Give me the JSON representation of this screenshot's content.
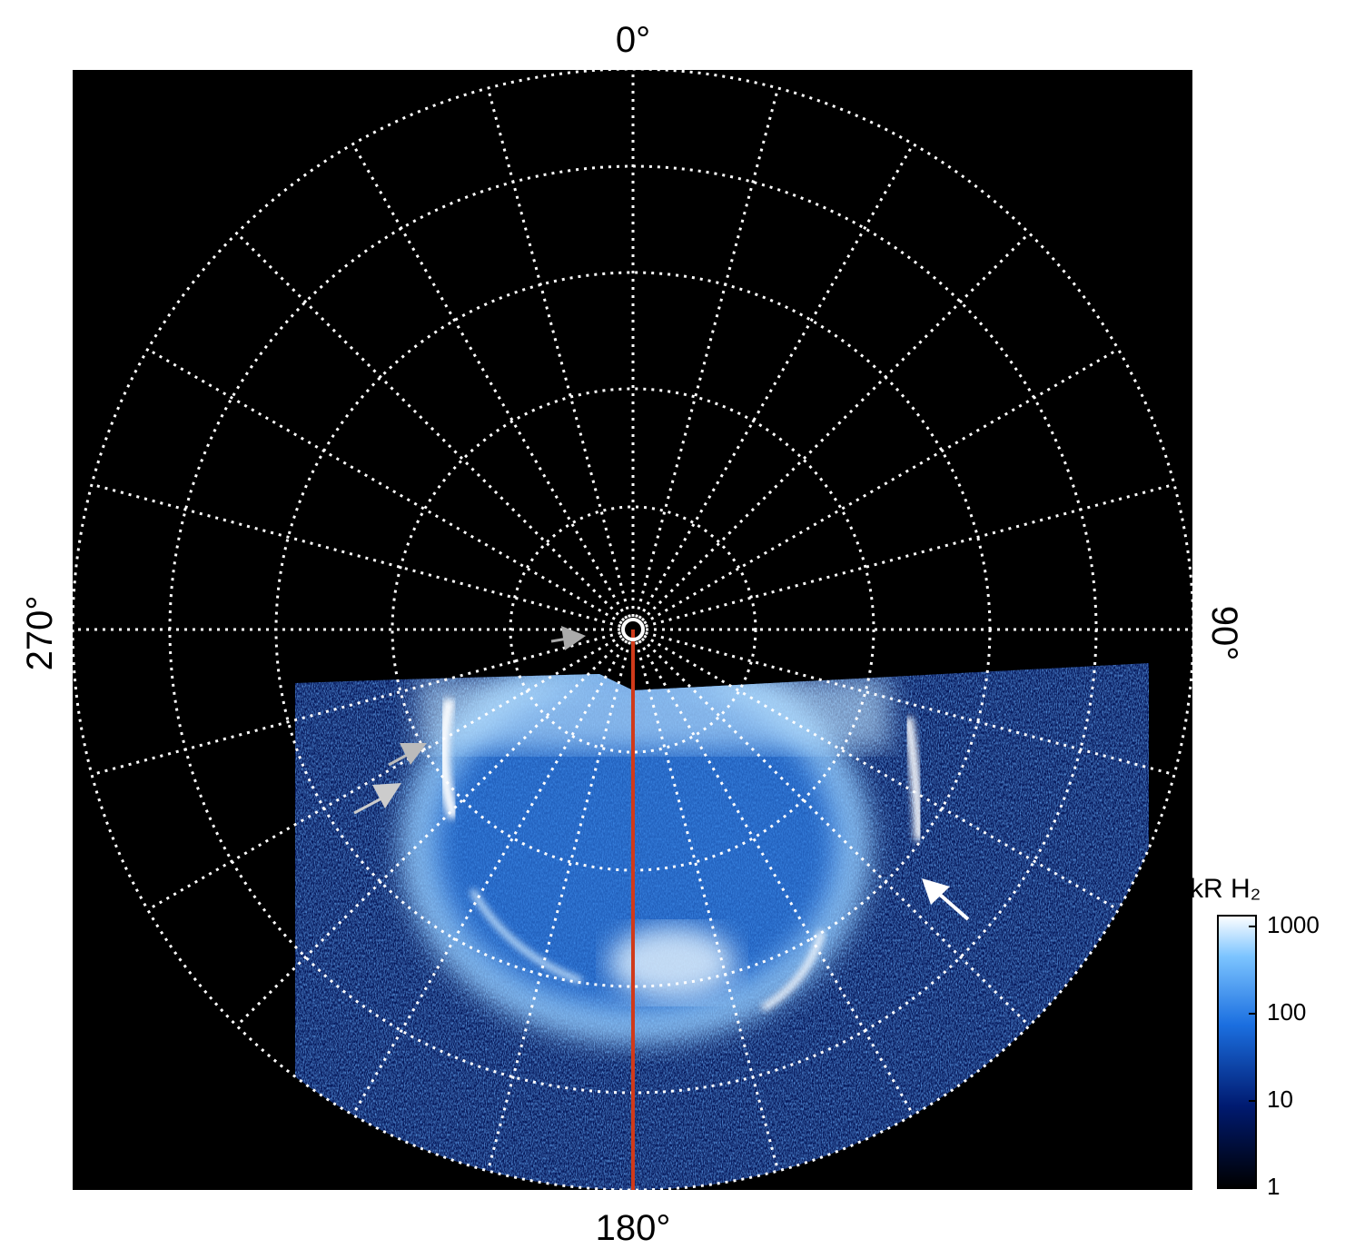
{
  "axis_labels": {
    "top": "0°",
    "right": "90°",
    "bottom": "180°",
    "left": "270°"
  },
  "colorbar": {
    "label": "kR H₂",
    "scale": "log",
    "lim": [
      1,
      1330
    ],
    "ticks": [
      1,
      10,
      100,
      1000
    ]
  }
}
